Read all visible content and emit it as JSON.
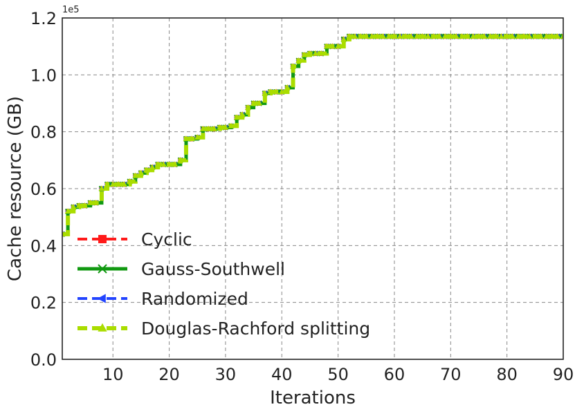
{
  "chart_data": {
    "type": "line",
    "xlabel": "Iterations",
    "ylabel": "Cache resource (GB)",
    "y_offset_label": "1e5",
    "y_multiplier": 100000,
    "xlim": [
      1,
      90
    ],
    "ylim": [
      0,
      1.2
    ],
    "xticks": [
      10,
      20,
      30,
      40,
      50,
      60,
      70,
      80,
      90
    ],
    "yticks": [
      0.0,
      0.2,
      0.4,
      0.6,
      0.8,
      1.0,
      1.2
    ],
    "ytick_labels": [
      "0.0",
      "0.2",
      "0.4",
      "0.6",
      "0.8",
      "1.0",
      "1.2"
    ],
    "grid": true,
    "legend_position": "lower-left",
    "x": [
      1,
      2,
      3,
      4,
      5,
      6,
      7,
      8,
      9,
      10,
      11,
      12,
      13,
      14,
      15,
      16,
      17,
      18,
      19,
      20,
      21,
      22,
      23,
      24,
      25,
      26,
      27,
      28,
      29,
      30,
      31,
      32,
      33,
      34,
      35,
      36,
      37,
      38,
      39,
      40,
      41,
      42,
      43,
      44,
      45,
      46,
      47,
      48,
      49,
      50,
      51,
      52,
      53,
      54,
      55,
      56,
      57,
      58,
      59,
      60,
      61,
      62,
      63,
      64,
      65,
      66,
      67,
      68,
      69,
      70,
      71,
      72,
      73,
      74,
      75,
      76,
      77,
      78,
      79,
      80,
      81,
      82,
      83,
      84,
      85,
      86,
      87,
      88,
      89,
      90
    ],
    "y": [
      0.44,
      0.52,
      0.535,
      0.54,
      0.54,
      0.55,
      0.55,
      0.6,
      0.615,
      0.615,
      0.615,
      0.615,
      0.625,
      0.645,
      0.655,
      0.665,
      0.675,
      0.685,
      0.685,
      0.685,
      0.685,
      0.7,
      0.775,
      0.775,
      0.78,
      0.81,
      0.81,
      0.81,
      0.815,
      0.815,
      0.82,
      0.85,
      0.86,
      0.885,
      0.9,
      0.9,
      0.935,
      0.94,
      0.94,
      0.94,
      0.955,
      1.03,
      1.05,
      1.07,
      1.075,
      1.075,
      1.075,
      1.1,
      1.1,
      1.1,
      1.125,
      1.135,
      1.135,
      1.135,
      1.135,
      1.135,
      1.135,
      1.135,
      1.135,
      1.135,
      1.135,
      1.135,
      1.135,
      1.135,
      1.135,
      1.135,
      1.135,
      1.135,
      1.135,
      1.135,
      1.135,
      1.135,
      1.135,
      1.135,
      1.135,
      1.135,
      1.135,
      1.135,
      1.135,
      1.135,
      1.135,
      1.135,
      1.135,
      1.135,
      1.135,
      1.135,
      1.135,
      1.135,
      1.135,
      1.135
    ],
    "series": [
      {
        "name": "Cyclic",
        "color": "#ff1a1a",
        "dash": "dashed",
        "marker": "square",
        "width": 4
      },
      {
        "name": "Gauss-Southwell",
        "color": "#119911",
        "dash": "solid",
        "marker": "x",
        "width": 5
      },
      {
        "name": "Randomized",
        "color": "#2244ff",
        "dash": "dashed",
        "marker": "arrow-left",
        "width": 4
      },
      {
        "name": "Douglas-Rachford splitting",
        "color": "#aadd00",
        "dash": "dashed",
        "marker": "triangle",
        "width": 6
      }
    ]
  }
}
